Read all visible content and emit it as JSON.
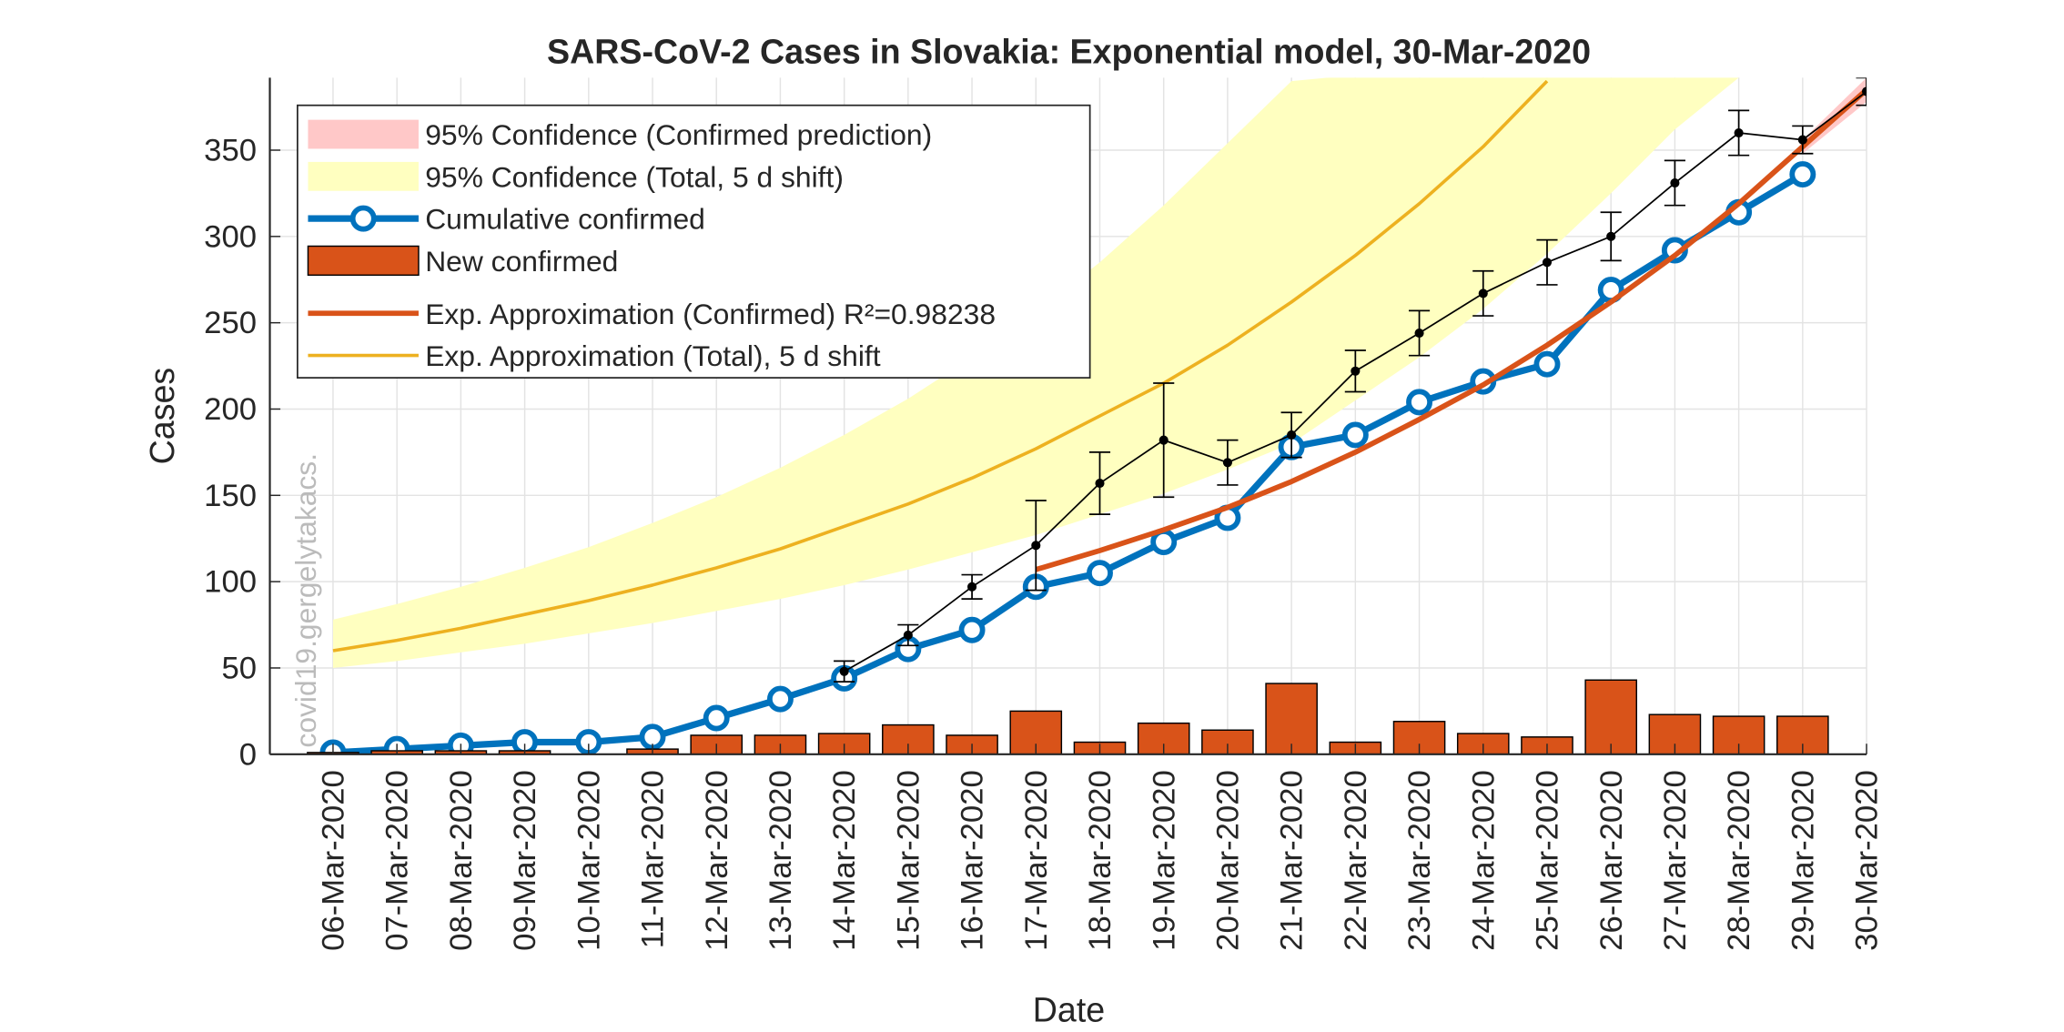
{
  "chart_data": {
    "type": "line",
    "title": "SARS-CoV-2 Cases in Slovakia: Exponential model, 30-Mar-2020",
    "xlabel": "Date",
    "ylabel": "Cases",
    "watermark": "covid19.gergelytakacs.",
    "categories": [
      "06-Mar-2020",
      "07-Mar-2020",
      "08-Mar-2020",
      "09-Mar-2020",
      "10-Mar-2020",
      "11-Mar-2020",
      "12-Mar-2020",
      "13-Mar-2020",
      "14-Mar-2020",
      "15-Mar-2020",
      "16-Mar-2020",
      "17-Mar-2020",
      "18-Mar-2020",
      "19-Mar-2020",
      "20-Mar-2020",
      "21-Mar-2020",
      "22-Mar-2020",
      "23-Mar-2020",
      "24-Mar-2020",
      "25-Mar-2020",
      "26-Mar-2020",
      "27-Mar-2020",
      "28-Mar-2020",
      "29-Mar-2020",
      "30-Mar-2020"
    ],
    "ylim": [
      0,
      392
    ],
    "yticks": [
      0,
      50,
      100,
      150,
      200,
      250,
      300,
      350
    ],
    "grid": true,
    "legend": "upper left",
    "series": [
      {
        "name": "95% Confidence (Confirmed prediction)",
        "kind": "band",
        "color": "#ffc8c8",
        "lower": [
          null,
          null,
          null,
          null,
          null,
          null,
          null,
          null,
          null,
          null,
          null,
          null,
          null,
          null,
          null,
          null,
          null,
          null,
          null,
          null,
          null,
          null,
          null,
          348,
          378
        ],
        "upper": [
          null,
          null,
          null,
          null,
          null,
          null,
          null,
          null,
          null,
          null,
          null,
          null,
          null,
          null,
          null,
          null,
          null,
          null,
          null,
          null,
          null,
          null,
          null,
          356,
          392
        ]
      },
      {
        "name": "95% Confidence (Total, 5 d shift)",
        "kind": "band",
        "color": "#ffffc0",
        "lower": [
          50,
          54,
          59,
          64,
          70,
          76,
          83,
          90,
          98,
          107,
          117,
          127,
          139,
          151,
          165,
          180,
          205,
          230,
          258,
          290,
          325,
          362,
          392,
          null,
          null
        ],
        "upper": [
          78,
          87,
          97,
          108,
          120,
          134,
          149,
          166,
          185,
          206,
          230,
          256,
          285,
          318,
          354,
          390,
          null,
          null,
          null,
          null,
          null,
          null,
          null,
          null,
          null
        ]
      },
      {
        "name": "Cumulative confirmed",
        "kind": "markerline",
        "color": "#0072bd",
        "values": [
          1,
          3,
          5,
          7,
          7,
          10,
          21,
          32,
          44,
          61,
          72,
          97,
          105,
          123,
          137,
          178,
          185,
          204,
          216,
          226,
          269,
          292,
          314,
          336,
          null
        ]
      },
      {
        "name": "New confirmed",
        "kind": "bar",
        "color": "#d95319",
        "values": [
          1,
          2,
          2,
          2,
          0,
          3,
          11,
          11,
          12,
          17,
          11,
          25,
          7,
          18,
          14,
          41,
          7,
          19,
          12,
          10,
          43,
          23,
          22,
          22,
          null
        ]
      },
      {
        "name": "Exp. Approximation (Confirmed) R²=0.98238",
        "kind": "line",
        "color": "#d95319",
        "width": 4,
        "values": [
          null,
          null,
          null,
          null,
          null,
          null,
          null,
          null,
          null,
          null,
          null,
          107,
          118,
          130,
          143,
          158,
          175,
          194,
          214,
          237,
          262,
          289,
          319,
          352,
          385
        ]
      },
      {
        "name": "Exp. Approximation (Total), 5 d shift",
        "kind": "line",
        "color": "#edb120",
        "width": 2.5,
        "values": [
          60,
          66,
          73,
          81,
          89,
          98,
          108,
          119,
          132,
          145,
          160,
          177,
          196,
          215,
          237,
          262,
          289,
          319,
          352,
          390,
          null,
          null,
          null,
          null,
          null
        ]
      },
      {
        "kind": "errorline",
        "color": "#000000",
        "values": [
          null,
          null,
          null,
          null,
          null,
          null,
          null,
          null,
          48,
          69,
          97,
          121,
          157,
          182,
          169,
          185,
          222,
          244,
          267,
          285,
          300,
          331,
          360,
          356,
          384
        ],
        "errors": [
          null,
          null,
          null,
          null,
          null,
          null,
          null,
          null,
          6,
          6,
          7,
          26,
          18,
          33,
          13,
          13,
          12,
          13,
          13,
          13,
          14,
          13,
          13,
          8,
          8
        ]
      }
    ]
  }
}
